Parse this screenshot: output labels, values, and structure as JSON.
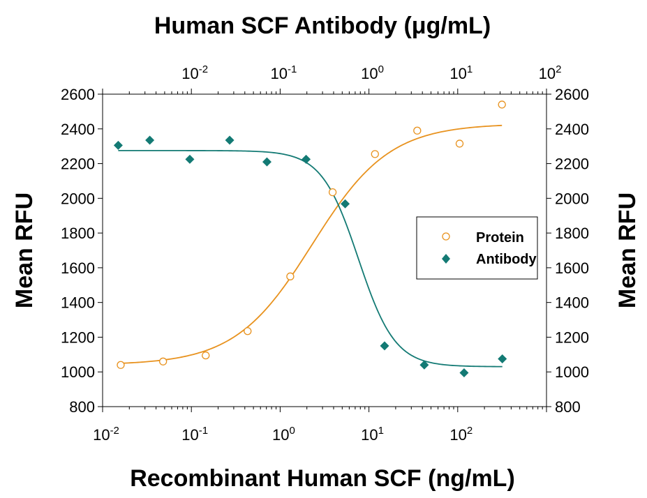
{
  "chart_data": {
    "type": "scatter",
    "title": "Human SCF Antibody (μg/mL)",
    "xlabel": "Recombinant Human SCF (ng/mL)",
    "ylabel_left": "Mean RFU",
    "ylabel_right": "Mean RFU",
    "x_scale": "log",
    "x_bottom": {
      "label": "Recombinant Human SCF (ng/mL)",
      "range": [
        0.01,
        1000
      ],
      "ticks": [
        {
          "value": 0.01,
          "base": "10",
          "exp": "-2"
        },
        {
          "value": 0.1,
          "base": "10",
          "exp": "-1"
        },
        {
          "value": 1,
          "base": "10",
          "exp": "0"
        },
        {
          "value": 10,
          "base": "10",
          "exp": "1"
        },
        {
          "value": 100,
          "base": "10",
          "exp": "2"
        }
      ]
    },
    "x_top": {
      "label": "Human SCF Antibody (μg/mL)",
      "range": [
        0.001,
        100
      ],
      "ticks": [
        {
          "value": 0.01,
          "base": "10",
          "exp": "-2"
        },
        {
          "value": 0.1,
          "base": "10",
          "exp": "-1"
        },
        {
          "value": 1,
          "base": "10",
          "exp": "0"
        },
        {
          "value": 10,
          "base": "10",
          "exp": "1"
        },
        {
          "value": 100,
          "base": "10",
          "exp": "2"
        }
      ]
    },
    "y": {
      "range": [
        800,
        2600
      ],
      "ticks": [
        "800",
        "1000",
        "1200",
        "1400",
        "1600",
        "1800",
        "2000",
        "2200",
        "2400",
        "2600"
      ]
    },
    "grid": false,
    "legend_position": "right",
    "series": [
      {
        "name": "Protein",
        "axis": "bottom",
        "marker": "open-circle",
        "color": "#E8921E",
        "points": [
          {
            "x": 0.016,
            "y": 1040
          },
          {
            "x": 0.048,
            "y": 1060
          },
          {
            "x": 0.145,
            "y": 1095
          },
          {
            "x": 0.43,
            "y": 1235
          },
          {
            "x": 1.3,
            "y": 1550
          },
          {
            "x": 3.9,
            "y": 2035
          },
          {
            "x": 11.7,
            "y": 2255
          },
          {
            "x": 35,
            "y": 2390
          },
          {
            "x": 105,
            "y": 2315
          },
          {
            "x": 315,
            "y": 2540
          }
        ],
        "fit": {
          "bottom": 1040,
          "top": 2430,
          "ec50": 2.3,
          "hill": 1.0
        }
      },
      {
        "name": "Antibody",
        "axis": "top",
        "marker": "filled-diamond",
        "color": "#137A74",
        "points": [
          {
            "x": 0.0015,
            "y": 2305
          },
          {
            "x": 0.0034,
            "y": 2335
          },
          {
            "x": 0.0096,
            "y": 2225
          },
          {
            "x": 0.027,
            "y": 2335
          },
          {
            "x": 0.071,
            "y": 2210
          },
          {
            "x": 0.196,
            "y": 2225
          },
          {
            "x": 0.54,
            "y": 1968
          },
          {
            "x": 1.5,
            "y": 1150
          },
          {
            "x": 4.2,
            "y": 1040
          },
          {
            "x": 11.8,
            "y": 995
          },
          {
            "x": 31.8,
            "y": 1075
          }
        ],
        "fit": {
          "bottom": 1030,
          "top": 2275,
          "ec50": 0.76,
          "hill": 2.1
        }
      }
    ]
  }
}
